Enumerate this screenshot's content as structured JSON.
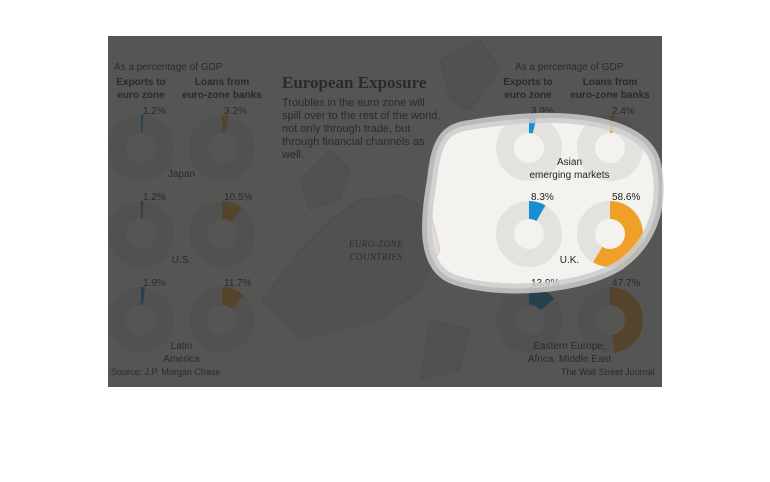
{
  "title": "European Exposure",
  "subtitle": "Troubles in the euro zone will spill over to the rest of the world, not only through trade, but through financial channels as well.",
  "unit_note": "As a percentage of GDP",
  "map_label": "EURO-ZONE\nCOUNTRIES",
  "source": "Source: J.P. Morgan Chase",
  "credit": "The Wall Street Journal",
  "chart_data": [
    {
      "type": "donut",
      "title": "Japan",
      "series": [
        {
          "name": "Exports to\neuro zone",
          "color": "#1a8ed3",
          "values": [
            1.2
          ],
          "value_labels": [
            "1.2%"
          ]
        },
        {
          "name": "Loans from\neuro-zone banks",
          "color": "#f0a028",
          "values": [
            3.2
          ],
          "value_labels": [
            "3.2%"
          ]
        }
      ]
    },
    {
      "type": "donut",
      "title": "U.S.",
      "series": [
        {
          "name": "Exports to\neuro zone",
          "color": "#1a8ed3",
          "values": [
            1.2
          ],
          "value_labels": [
            "1.2%"
          ]
        },
        {
          "name": "Loans from\neuro-zone banks",
          "color": "#f0a028",
          "values": [
            10.5
          ],
          "value_labels": [
            "10.5%"
          ]
        }
      ]
    },
    {
      "type": "donut",
      "title": "Latin\nAmerica",
      "series": [
        {
          "name": "Exports to\neuro zone",
          "color": "#1a8ed3",
          "values": [
            1.9
          ],
          "value_labels": [
            "1.9%"
          ]
        },
        {
          "name": "Loans from\neuro-zone banks",
          "color": "#f0a028",
          "values": [
            11.7
          ],
          "value_labels": [
            "11.7%"
          ]
        }
      ]
    },
    {
      "type": "donut",
      "title": "Asian\nemerging markets",
      "series": [
        {
          "name": "Exports to\neuro zone",
          "color": "#1a8ed3",
          "values": [
            3.9
          ],
          "value_labels": [
            "3.9%"
          ]
        },
        {
          "name": "Loans from\neuro-zone banks",
          "color": "#f0a028",
          "values": [
            2.4
          ],
          "value_labels": [
            "2.4%"
          ]
        }
      ]
    },
    {
      "type": "donut",
      "title": "U.K.",
      "series": [
        {
          "name": "Exports to\neuro zone",
          "color": "#1a8ed3",
          "values": [
            8.3
          ],
          "value_labels": [
            "8.3%"
          ]
        },
        {
          "name": "Loans from\neuro-zone banks",
          "color": "#f0a028",
          "values": [
            58.6
          ],
          "value_labels": [
            "58.6%"
          ]
        }
      ]
    },
    {
      "type": "donut",
      "title": "Eastern Europe,\nAfrica, Middle East",
      "series": [
        {
          "name": "Exports to\neuro zone",
          "color": "#1a8ed3",
          "values": [
            13.9
          ],
          "value_labels": [
            "13.9%"
          ]
        },
        {
          "name": "Loans from\neuro-zone banks",
          "color": "#f0a028",
          "values": [
            47.7
          ],
          "value_labels": [
            "47.7%"
          ]
        }
      ]
    }
  ]
}
